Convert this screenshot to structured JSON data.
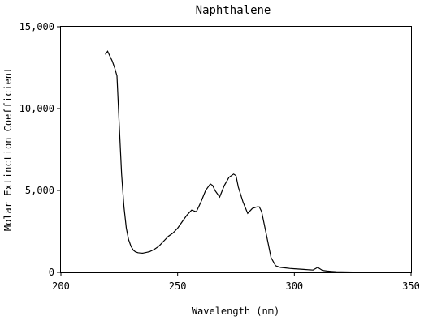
{
  "chart_data": {
    "type": "line",
    "title": "Naphthalene",
    "xlabel": "Wavelength (nm)",
    "ylabel": "Molar Extinction Coefficient",
    "xlim": [
      200,
      350
    ],
    "ylim": [
      0,
      15000
    ],
    "x_ticks": [
      200,
      250,
      300,
      350
    ],
    "x_tick_labels": [
      "200",
      "250",
      "300",
      "350"
    ],
    "y_ticks": [
      0,
      5000,
      10000,
      15000
    ],
    "y_tick_labels": [
      "0",
      "5,000",
      "10,000",
      "15,000"
    ],
    "grid": false,
    "line_color": "#000000",
    "series": [
      {
        "x": [
          219,
          220,
          221,
          222,
          223,
          224,
          225,
          226,
          227,
          228,
          229,
          230,
          231,
          232,
          233,
          234,
          235,
          236,
          237,
          238,
          240,
          242,
          244,
          246,
          248,
          250,
          252,
          254,
          256,
          258,
          260,
          262,
          264,
          265,
          266,
          268,
          270,
          272,
          274,
          275,
          276,
          278,
          280,
          282,
          284,
          285,
          286,
          288,
          290,
          292,
          294,
          296,
          298,
          300,
          302,
          304,
          306,
          308,
          310,
          312,
          314,
          316,
          318,
          320,
          325,
          330,
          335,
          340
        ],
        "y": [
          13300,
          13500,
          13200,
          12900,
          12500,
          12000,
          9000,
          6000,
          4000,
          2700,
          2000,
          1600,
          1350,
          1250,
          1200,
          1180,
          1170,
          1200,
          1230,
          1260,
          1400,
          1600,
          1900,
          2200,
          2400,
          2700,
          3100,
          3500,
          3800,
          3700,
          4300,
          5000,
          5400,
          5300,
          5000,
          4600,
          5300,
          5800,
          6000,
          5900,
          5200,
          4300,
          3600,
          3900,
          4000,
          4000,
          3700,
          2300,
          900,
          400,
          300,
          270,
          240,
          220,
          200,
          180,
          160,
          140,
          300,
          120,
          80,
          60,
          40,
          30,
          20,
          15,
          10,
          10
        ]
      }
    ]
  }
}
